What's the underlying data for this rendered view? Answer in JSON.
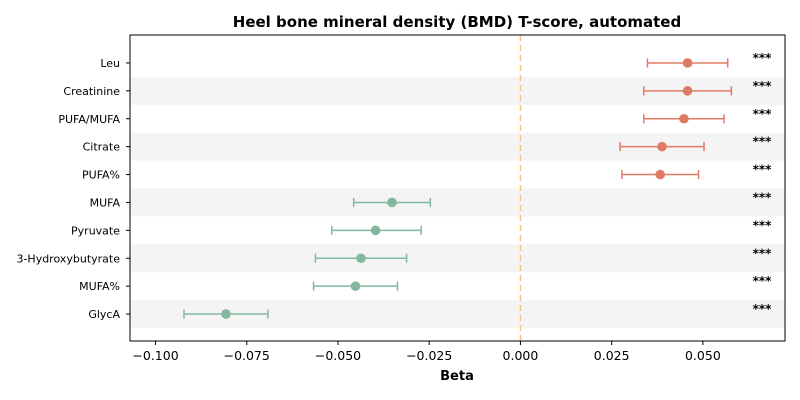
{
  "colors": {
    "positive": "#e07b63",
    "negative": "#82b89e",
    "zero_line": "#f2c77c",
    "band": "#f4f4f4"
  },
  "chart_data": {
    "type": "forest",
    "title": "Heel bone mineral density (BMD) T-score, automated",
    "xlabel": "Beta",
    "xlim": [
      -0.107,
      0.0725
    ],
    "xticks": [
      -0.1,
      -0.075,
      -0.05,
      -0.025,
      0.0,
      0.025,
      0.05
    ],
    "xtick_labels": [
      "−0.100",
      "−0.075",
      "−0.050",
      "−0.025",
      "0.000",
      "0.025",
      "0.050"
    ],
    "reference_line": 0,
    "alternating_bands": true,
    "rows": [
      {
        "label": "Leu",
        "beta": 0.0458,
        "ci_low": 0.0348,
        "ci_high": 0.0568,
        "significance": "***"
      },
      {
        "label": "Creatinine",
        "beta": 0.0458,
        "ci_low": 0.0338,
        "ci_high": 0.0578,
        "significance": "***"
      },
      {
        "label": "PUFA/MUFA",
        "beta": 0.0448,
        "ci_low": 0.0338,
        "ci_high": 0.0558,
        "significance": "***"
      },
      {
        "label": "Citrate",
        "beta": 0.0388,
        "ci_low": 0.0273,
        "ci_high": 0.0503,
        "significance": "***"
      },
      {
        "label": "PUFA%",
        "beta": 0.0383,
        "ci_low": 0.0278,
        "ci_high": 0.0488,
        "significance": "***"
      },
      {
        "label": "MUFA",
        "beta": -0.0352,
        "ci_low": -0.0457,
        "ci_high": -0.0247,
        "significance": "***"
      },
      {
        "label": "Pyruvate",
        "beta": -0.0397,
        "ci_low": -0.0517,
        "ci_high": -0.0272,
        "significance": "***"
      },
      {
        "label": "3-Hydroxybutyrate",
        "beta": -0.0437,
        "ci_low": -0.0562,
        "ci_high": -0.0312,
        "significance": "***"
      },
      {
        "label": "MUFA%",
        "beta": -0.0452,
        "ci_low": -0.0567,
        "ci_high": -0.0337,
        "significance": "***"
      },
      {
        "label": "GlycA",
        "beta": -0.0807,
        "ci_low": -0.0922,
        "ci_high": -0.0692,
        "significance": "***"
      }
    ]
  }
}
